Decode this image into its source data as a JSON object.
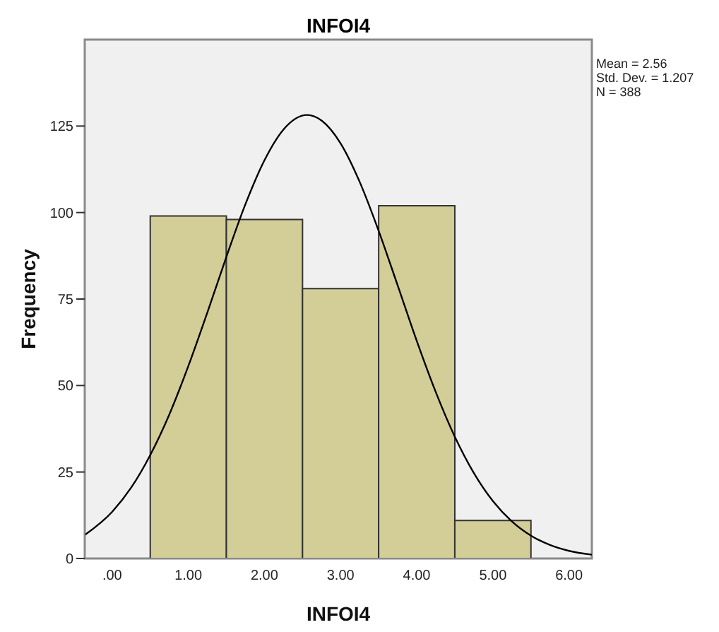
{
  "chart_data": {
    "type": "histogram",
    "title": "INFOI4",
    "xlabel": "INFOI4",
    "ylabel": "Frequency",
    "bins": [
      0.5,
      1.5,
      2.5,
      3.5,
      4.5,
      5.5
    ],
    "values": [
      99,
      98,
      78,
      102,
      11
    ],
    "color": "#d3ce98",
    "xlim": [
      -0.36,
      6.3
    ],
    "xticks": [
      {
        "value": 0,
        "label": ".00"
      },
      {
        "value": 1,
        "label": "1.00"
      },
      {
        "value": 2,
        "label": "2.00"
      },
      {
        "value": 3,
        "label": "3.00"
      },
      {
        "value": 4,
        "label": "4.00"
      },
      {
        "value": 5,
        "label": "5.00"
      },
      {
        "value": 6,
        "label": "6.00"
      }
    ],
    "ylim": [
      0,
      150
    ],
    "yticks": [
      0,
      25,
      50,
      75,
      100,
      125
    ],
    "series": [
      {
        "type": "line",
        "color": "#000000",
        "x": [
          -0.36,
          0,
          0.25,
          0.5,
          0.75,
          1,
          1.25,
          1.5,
          1.75,
          2,
          2.25,
          2.56,
          2.75,
          3,
          3.25,
          3.5,
          3.75,
          4,
          4.25,
          4.5,
          4.75,
          5,
          5.25,
          5.5,
          5.75,
          6,
          6.3
        ],
        "values": [
          6.8,
          13.5,
          20.5,
          29.9,
          41.6,
          55.6,
          71.1,
          87.2,
          102.4,
          115.1,
          124,
          128.2,
          126.6,
          120,
          108.9,
          94.7,
          78.9,
          62.9,
          48.1,
          35.2,
          24.7,
          16.6,
          10.7,
          6.6,
          3.9,
          2.2,
          1.1
        ]
      }
    ],
    "annotations": [
      "Mean = 2.56",
      "Std. Dev. = 1.207",
      "N = 388"
    ]
  }
}
